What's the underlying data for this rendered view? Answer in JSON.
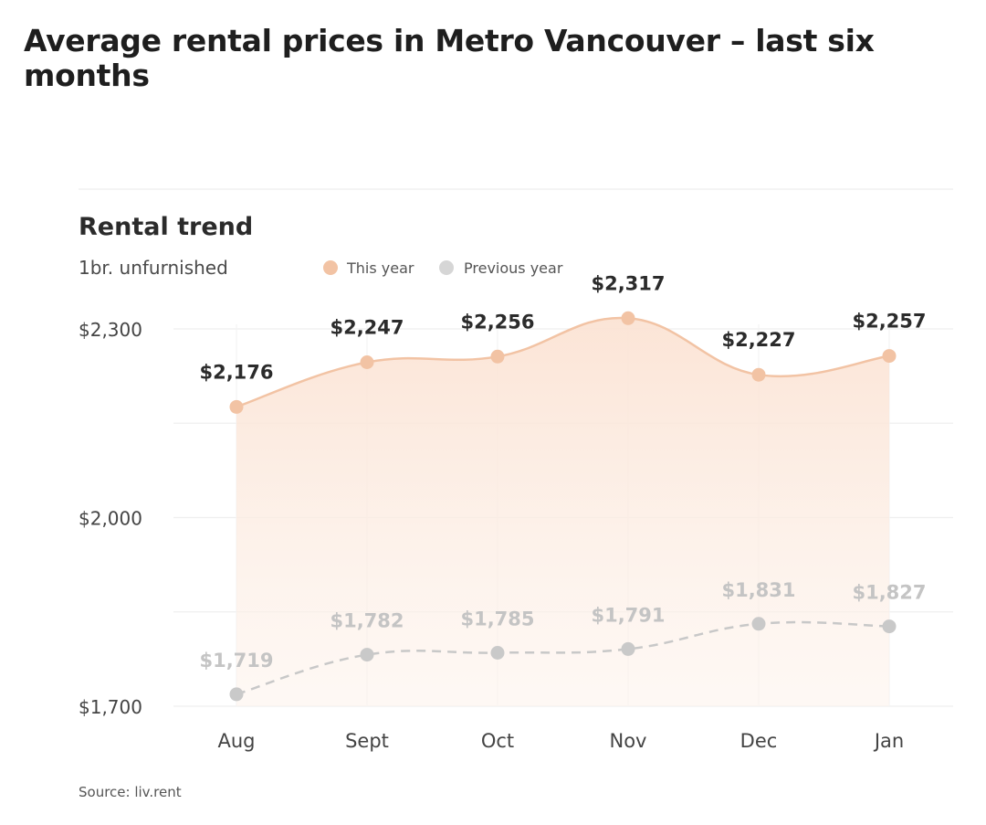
{
  "page": {
    "title": "Average rental prices in Metro Vancouver – last six months",
    "source": "Source: liv.rent"
  },
  "colors": {
    "this_year": "#f2c3a4",
    "this_year_fill": "#fce8dc",
    "previous_year": "#c8c8c8",
    "previous_label": "#c4c4c4",
    "grid": "#efefef"
  },
  "chart_data": {
    "type": "area",
    "title": "Rental trend",
    "subtitle": "1br. unfurnished",
    "categories": [
      "Aug",
      "Sept",
      "Oct",
      "Nov",
      "Dec",
      "Jan"
    ],
    "series": [
      {
        "name": "This year",
        "values": [
          2176,
          2247,
          2256,
          2317,
          2227,
          2257
        ],
        "labels": [
          "$2,176",
          "$2,247",
          "$2,256",
          "$2,317",
          "$2,227",
          "$2,257"
        ],
        "style": "solid-area"
      },
      {
        "name": "Previous year",
        "values": [
          1719,
          1782,
          1785,
          1791,
          1831,
          1827
        ],
        "labels": [
          "$1,719",
          "$1,782",
          "$1,785",
          "$1,791",
          "$1,831",
          "$1,827"
        ],
        "style": "dashed"
      }
    ],
    "y_ticks": [
      1700,
      2000,
      2300
    ],
    "y_tick_labels": [
      "$1,700",
      "$2,000",
      "$2,300"
    ],
    "ylim": [
      1700,
      2300
    ],
    "grid": true,
    "legend_position": "top"
  }
}
